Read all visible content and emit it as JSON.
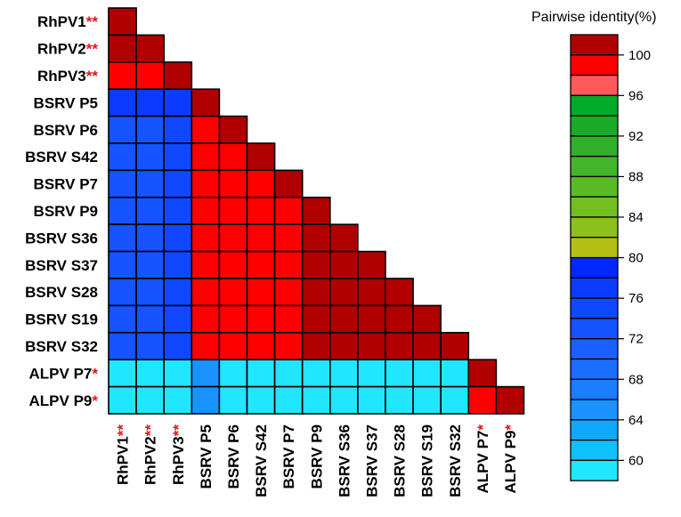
{
  "chart_data": {
    "type": "heatmap",
    "labels": [
      "RhPV1",
      "RhPV2",
      "RhPV3",
      "BSRV P5",
      "BSRV P6",
      "BSRV S42",
      "BSRV P7",
      "BSRV P9",
      "BSRV S36",
      "BSRV S37",
      "BSRV S28",
      "BSRV S19",
      "BSRV S32",
      "ALPV P7",
      "ALPV P9"
    ],
    "markers": [
      "**",
      "**",
      "**",
      "",
      "",
      "",
      "",
      "",
      "",
      "",
      "",
      "",
      "",
      "*",
      "*"
    ],
    "values": [
      [
        100
      ],
      [
        100,
        100
      ],
      [
        98,
        98,
        100
      ],
      [
        75,
        75,
        75,
        100
      ],
      [
        72,
        72,
        73,
        98,
        100
      ],
      [
        72,
        72,
        73,
        98,
        98,
        100
      ],
      [
        72,
        72,
        73,
        98,
        98,
        98,
        100
      ],
      [
        72,
        72,
        73,
        98,
        98,
        98,
        98,
        100
      ],
      [
        72,
        72,
        73,
        98,
        98,
        98,
        98,
        99,
        100
      ],
      [
        72,
        72,
        73,
        98,
        98,
        98,
        98,
        99,
        99,
        100
      ],
      [
        72,
        72,
        73,
        98,
        98,
        98,
        98,
        99,
        99,
        99,
        100
      ],
      [
        72,
        72,
        73,
        98,
        98,
        98,
        98,
        99,
        99,
        99,
        99,
        100
      ],
      [
        72,
        72,
        73,
        98,
        98,
        98,
        98,
        99,
        99,
        99,
        99,
        99,
        100
      ],
      [
        58,
        58,
        58,
        64,
        58,
        58,
        58,
        58,
        58,
        58,
        58,
        58,
        58,
        100
      ],
      [
        58,
        58,
        58,
        64,
        58,
        58,
        58,
        58,
        58,
        58,
        58,
        58,
        58,
        98,
        100
      ]
    ],
    "legend": {
      "title": "Pairwise identity(%)",
      "ticks": [
        100,
        96,
        92,
        88,
        84,
        80,
        76,
        72,
        68,
        64,
        60
      ],
      "bins": [
        {
          "value": 100,
          "color": "#b00000"
        },
        {
          "value": 98,
          "color": "#ff0000"
        },
        {
          "value": 96,
          "color": "#ff5a5a"
        },
        {
          "value": 94,
          "color": "#00aa2a"
        },
        {
          "value": 92,
          "color": "#1bab2a"
        },
        {
          "value": 90,
          "color": "#2faf2a"
        },
        {
          "value": 88,
          "color": "#43b52a"
        },
        {
          "value": 86,
          "color": "#5aba25"
        },
        {
          "value": 84,
          "color": "#73bf20"
        },
        {
          "value": 82,
          "color": "#8cc01c"
        },
        {
          "value": 80,
          "color": "#b5c014"
        },
        {
          "value": 78,
          "color": "#0028ff"
        },
        {
          "value": 76,
          "color": "#0a3cff"
        },
        {
          "value": 74,
          "color": "#1048ff"
        },
        {
          "value": 72,
          "color": "#1554ff"
        },
        {
          "value": 70,
          "color": "#1a60ff"
        },
        {
          "value": 68,
          "color": "#1a6eff"
        },
        {
          "value": 66,
          "color": "#1a7eff"
        },
        {
          "value": 64,
          "color": "#1a92ff"
        },
        {
          "value": 62,
          "color": "#10a8ff"
        },
        {
          "value": 60,
          "color": "#10c0ff"
        },
        {
          "value": 58,
          "color": "#20e6ff"
        }
      ]
    },
    "colors": {
      "marker": "#e8131b",
      "cell_border": "#000000"
    }
  }
}
